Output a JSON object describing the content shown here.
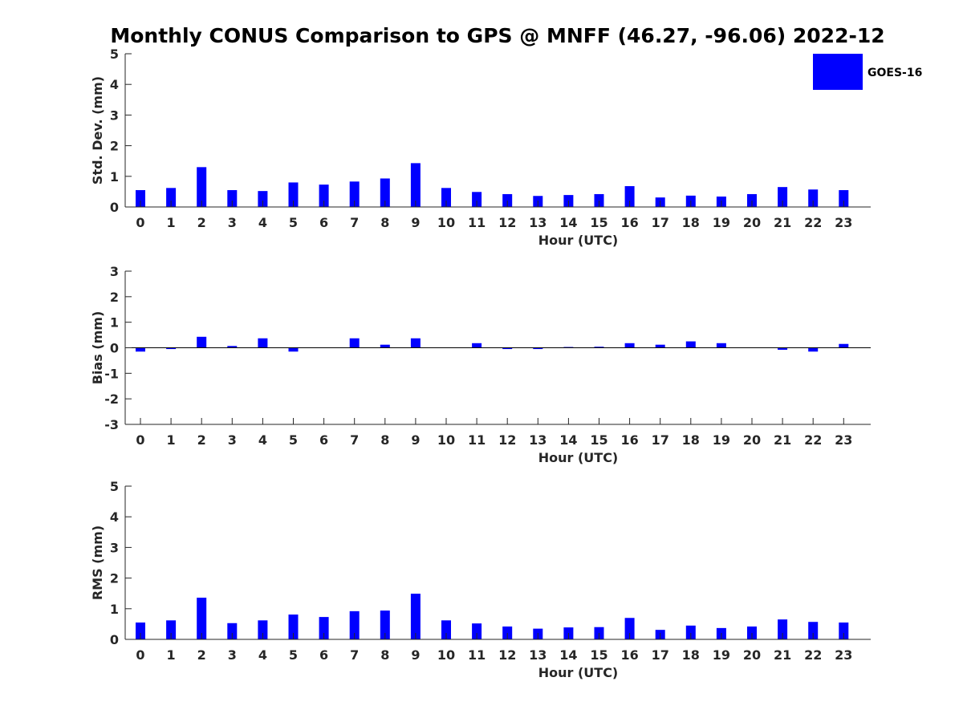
{
  "title": "Monthly CONUS Comparison to GPS @ MNFF (46.27, -96.06) 2022-12",
  "legend": {
    "label": "GOES-16",
    "color": "#0000ff"
  },
  "colors": {
    "bar": "#0000ff",
    "axis": "#262626"
  },
  "chart_data": [
    {
      "type": "bar",
      "id": "std",
      "xlabel": "Hour (UTC)",
      "ylabel": "Std. Dev. (mm)",
      "ylim": [
        0,
        5
      ],
      "yticks": [
        0,
        1,
        2,
        3,
        4,
        5
      ],
      "categories": [
        "0",
        "1",
        "2",
        "3",
        "4",
        "5",
        "6",
        "7",
        "8",
        "9",
        "10",
        "11",
        "12",
        "13",
        "14",
        "15",
        "16",
        "17",
        "18",
        "19",
        "20",
        "21",
        "22",
        "23"
      ],
      "series": [
        {
          "name": "GOES-16",
          "values": [
            0.55,
            0.62,
            1.3,
            0.55,
            0.52,
            0.8,
            0.73,
            0.83,
            0.93,
            1.43,
            0.62,
            0.49,
            0.42,
            0.36,
            0.39,
            0.42,
            0.68,
            0.31,
            0.37,
            0.34,
            0.42,
            0.65,
            0.57,
            0.55
          ]
        }
      ]
    },
    {
      "type": "bar",
      "id": "bias",
      "xlabel": "Hour (UTC)",
      "ylabel": "Bias (mm)",
      "ylim": [
        -3,
        3
      ],
      "yticks": [
        -3,
        -2,
        -1,
        0,
        1,
        2,
        3
      ],
      "categories": [
        "0",
        "1",
        "2",
        "3",
        "4",
        "5",
        "6",
        "7",
        "8",
        "9",
        "10",
        "11",
        "12",
        "13",
        "14",
        "15",
        "16",
        "17",
        "18",
        "19",
        "20",
        "21",
        "22",
        "23"
      ],
      "series": [
        {
          "name": "GOES-16",
          "values": [
            -0.15,
            -0.05,
            0.43,
            0.07,
            0.37,
            -0.15,
            0.0,
            0.37,
            0.12,
            0.37,
            0.0,
            0.18,
            -0.05,
            -0.05,
            0.03,
            0.04,
            0.18,
            0.12,
            0.25,
            0.18,
            0.0,
            -0.08,
            -0.15,
            0.15
          ]
        }
      ]
    },
    {
      "type": "bar",
      "id": "rms",
      "xlabel": "Hour (UTC)",
      "ylabel": "RMS (mm)",
      "ylim": [
        0,
        5
      ],
      "yticks": [
        0,
        1,
        2,
        3,
        4,
        5
      ],
      "categories": [
        "0",
        "1",
        "2",
        "3",
        "4",
        "5",
        "6",
        "7",
        "8",
        "9",
        "10",
        "11",
        "12",
        "13",
        "14",
        "15",
        "16",
        "17",
        "18",
        "19",
        "20",
        "21",
        "22",
        "23"
      ],
      "series": [
        {
          "name": "GOES-16",
          "values": [
            0.55,
            0.62,
            1.36,
            0.53,
            0.62,
            0.81,
            0.73,
            0.92,
            0.94,
            1.49,
            0.62,
            0.52,
            0.42,
            0.35,
            0.39,
            0.4,
            0.7,
            0.31,
            0.45,
            0.37,
            0.42,
            0.65,
            0.57,
            0.55
          ]
        }
      ]
    }
  ]
}
